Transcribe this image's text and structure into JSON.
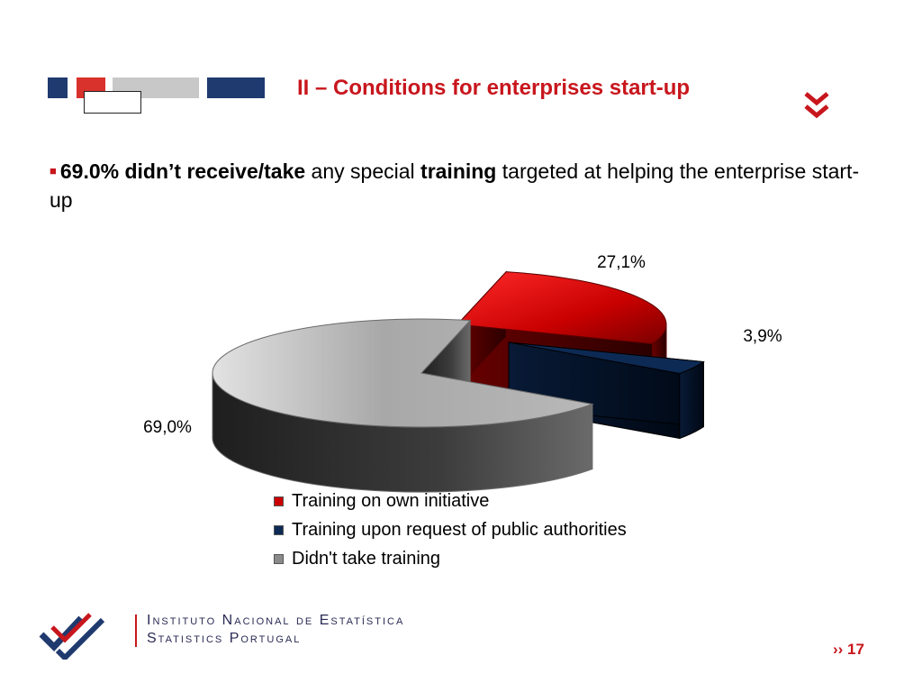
{
  "header": {
    "title": "II – Conditions for enterprises start-up",
    "colors": {
      "accent_red": "#c8161d",
      "navy": "#1f3a6e",
      "grey": "#c8c8c8"
    }
  },
  "bullet": {
    "part1_bold": "69.0% didn’t receive/take",
    "part2": " any special ",
    "part3_bold": "training",
    "part4": " targeted at helping the enterprise start-up"
  },
  "chart_data": {
    "type": "pie",
    "style": "3d-exploded",
    "labels": [
      "Training on own initiative",
      "Training upon request of public authorities",
      "Didn't take training"
    ],
    "values": [
      27.1,
      3.9,
      69.0
    ],
    "data_labels": [
      "27,1%",
      "3,9%",
      "69,0%"
    ],
    "colors": [
      "#d40000",
      "#0d2a55",
      "#9a9a9a"
    ],
    "legend_position": "bottom"
  },
  "legend": {
    "items": [
      {
        "label": "Training on own initiative",
        "color": "#cc0000"
      },
      {
        "label": "Training upon request of public authorities",
        "color": "#0d2a55"
      },
      {
        "label": "Didn't take training",
        "color": "#8a8a8a"
      }
    ]
  },
  "footer": {
    "logo_line1": "Instituto Nacional de Estatística",
    "logo_line2": "Statistics Portugal",
    "page_marker": "›› 17"
  }
}
